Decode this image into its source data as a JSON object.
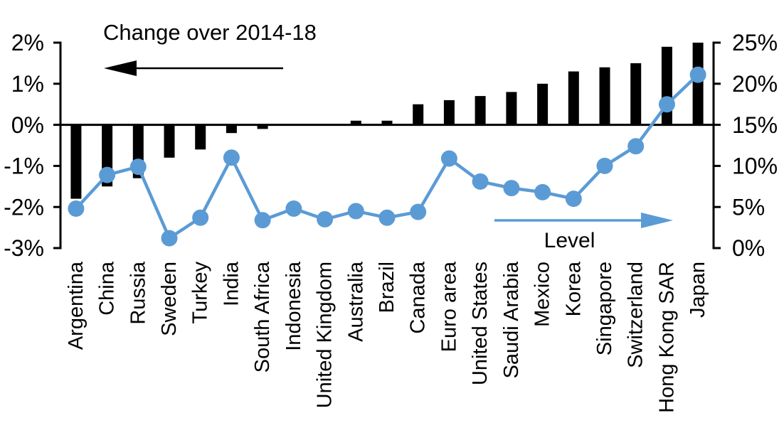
{
  "chart_data": {
    "type": "combo",
    "categories": [
      "Argentina",
      "China",
      "Russia",
      "Sweden",
      "Turkey",
      "India",
      "South Africa",
      "Indonesia",
      "United Kingdom",
      "Australia",
      "Brazil",
      "Canada",
      "Euro area",
      "United States",
      "Saudi Arabia",
      "Mexico",
      "Korea",
      "Singapore",
      "Switzerland",
      "Hong Kong SAR",
      "Japan"
    ],
    "series": [
      {
        "name": "Change over 2014-18",
        "type": "bar",
        "axis": "left",
        "values": [
          -1.8,
          -1.5,
          -1.3,
          -0.8,
          -0.6,
          -0.2,
          -0.1,
          0,
          0,
          0.1,
          0.1,
          0.5,
          0.6,
          0.7,
          0.8,
          1.0,
          1.3,
          1.4,
          1.5,
          1.9,
          2.0
        ]
      },
      {
        "name": "Level",
        "type": "line",
        "axis": "right",
        "values": [
          4.8,
          8.9,
          9.9,
          1.2,
          3.7,
          11.0,
          3.4,
          4.8,
          3.5,
          4.5,
          3.7,
          4.4,
          10.9,
          8.1,
          7.3,
          6.8,
          6.0,
          10.0,
          12.4,
          17.5,
          21.1
        ]
      }
    ],
    "left_axis": {
      "min": -3,
      "max": 2,
      "tick_labels": [
        "2%",
        "1%",
        "0%",
        "-1%",
        "-2%",
        "-3%"
      ]
    },
    "right_axis": {
      "min": 0,
      "max": 25,
      "tick_labels": [
        "25%",
        "20%",
        "15%",
        "10%",
        "5%",
        "0%"
      ]
    },
    "annotations": {
      "change_label": "Change over 2014-18",
      "level_label": "Level"
    },
    "colors": {
      "bar": "#000000",
      "line": "#5b9bd5",
      "axis": "#000000",
      "background": "#ffffff"
    },
    "grid": "off",
    "legend": "none (in-plot annotations with arrows)"
  }
}
